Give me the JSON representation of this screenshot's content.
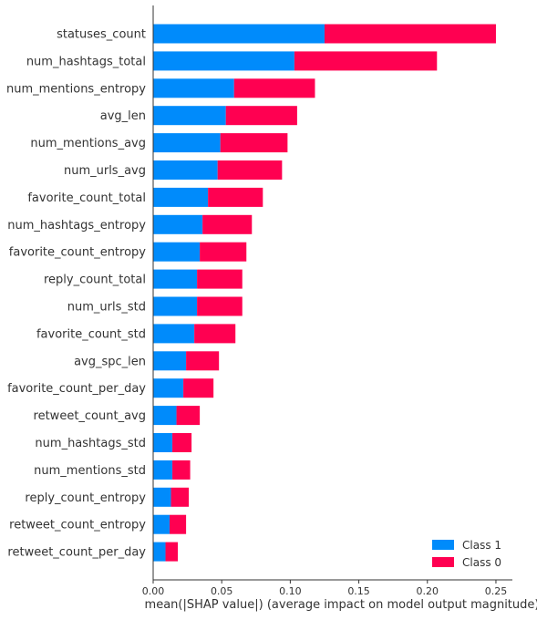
{
  "chart_data": {
    "type": "bar",
    "orientation": "horizontal",
    "stacked": true,
    "categories": [
      "statuses_count",
      "num_hashtags_total",
      "num_mentions_entropy",
      "avg_len",
      "num_mentions_avg",
      "num_urls_avg",
      "favorite_count_total",
      "num_hashtags_entropy",
      "favorite_count_entropy",
      "reply_count_total",
      "num_urls_std",
      "favorite_count_std",
      "avg_spc_len",
      "favorite_count_per_day",
      "retweet_count_avg",
      "num_hashtags_std",
      "num_mentions_std",
      "reply_count_entropy",
      "retweet_count_entropy",
      "retweet_count_per_day"
    ],
    "series": [
      {
        "name": "Class 1",
        "color": "#008bfb",
        "values": [
          0.125,
          0.103,
          0.059,
          0.053,
          0.049,
          0.047,
          0.04,
          0.036,
          0.034,
          0.032,
          0.032,
          0.03,
          0.024,
          0.022,
          0.017,
          0.014,
          0.014,
          0.013,
          0.012,
          0.009
        ]
      },
      {
        "name": "Class 0",
        "color": "#ff0051",
        "values": [
          0.125,
          0.104,
          0.059,
          0.052,
          0.049,
          0.047,
          0.04,
          0.036,
          0.034,
          0.033,
          0.033,
          0.03,
          0.024,
          0.022,
          0.017,
          0.014,
          0.013,
          0.013,
          0.012,
          0.009
        ]
      }
    ],
    "xlabel": "mean(|SHAP value|) (average impact on model output magnitude)",
    "xlim": [
      0,
      0.262
    ],
    "xticks": [
      0.0,
      0.05,
      0.1,
      0.15,
      0.2,
      0.25
    ],
    "xtick_labels": [
      "0.00",
      "0.05",
      "0.10",
      "0.15",
      "0.20",
      "0.25"
    ],
    "legend_position": "bottom-right",
    "grid": false
  }
}
